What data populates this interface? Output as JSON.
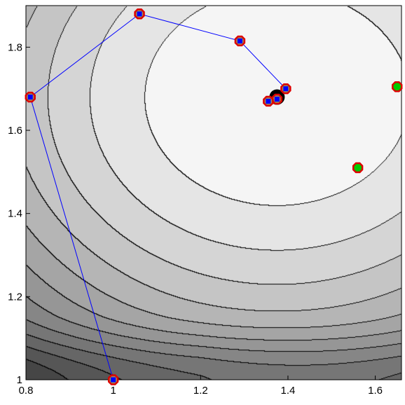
{
  "chart_data": {
    "type": "contour",
    "x_range": [
      0.8,
      1.66
    ],
    "y_range": [
      1.0,
      1.9
    ],
    "x_ticks": [
      {
        "value": 0.8,
        "label": "0.8"
      },
      {
        "value": 1.0,
        "label": "1"
      },
      {
        "value": 1.2,
        "label": "1.2"
      },
      {
        "value": 1.4,
        "label": "1.4"
      },
      {
        "value": 1.6,
        "label": "1.6"
      }
    ],
    "y_ticks": [
      {
        "value": 1.0,
        "label": "1"
      },
      {
        "value": 1.2,
        "label": "1.2"
      },
      {
        "value": 1.4,
        "label": "1.4"
      },
      {
        "value": 1.6,
        "label": "1.6"
      },
      {
        "value": 1.8,
        "label": "1.8"
      }
    ],
    "optimum": {
      "x": 1.375,
      "y": 1.68
    },
    "iteration_path": [
      {
        "x": 1.0,
        "y": 1.0
      },
      {
        "x": 0.81,
        "y": 1.68
      },
      {
        "x": 1.06,
        "y": 1.88
      },
      {
        "x": 1.29,
        "y": 1.815
      },
      {
        "x": 1.395,
        "y": 1.7
      },
      {
        "x": 1.375,
        "y": 1.675
      },
      {
        "x": 1.355,
        "y": 1.67
      }
    ],
    "extra_points": [
      {
        "x": 1.56,
        "y": 1.51
      },
      {
        "x": 1.65,
        "y": 1.705
      }
    ],
    "colors": {
      "path_line": "#0000ff",
      "point_outline": "#dd0000",
      "point_inner": "#0000ff",
      "point_green": "#00cc00",
      "contour_line": "#000000"
    }
  }
}
